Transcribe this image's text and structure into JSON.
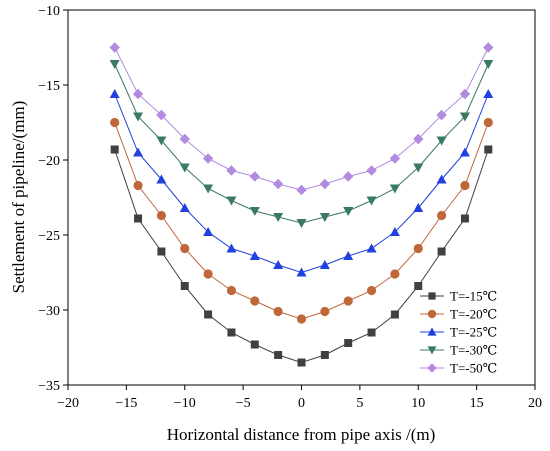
{
  "chart_data": {
    "type": "line",
    "xlabel": "Horizontal distance from pipe axis /(m)",
    "ylabel": "Settlement of pipeline/(mm)",
    "xlim": [
      -20,
      20
    ],
    "ylim": [
      -35,
      -10
    ],
    "xticks": [
      -20,
      -15,
      -10,
      -5,
      0,
      5,
      10,
      15,
      20
    ],
    "yticks": [
      -10,
      -15,
      -20,
      -25,
      -30,
      -35
    ],
    "grid": false,
    "legend_position": "bottom-right",
    "x": [
      -16,
      -14,
      -12,
      -10,
      -8,
      -6,
      -4,
      -2,
      0,
      2,
      4,
      6,
      8,
      10,
      12,
      14,
      16
    ],
    "series": [
      {
        "name": "T=-15℃",
        "marker": "square",
        "color": "#404040",
        "values": [
          -19.3,
          -23.9,
          -26.1,
          -28.4,
          -30.3,
          -31.5,
          -32.3,
          -33.0,
          -33.5,
          -33.0,
          -32.2,
          -31.5,
          -30.3,
          -28.4,
          -26.1,
          -23.9,
          -19.3
        ]
      },
      {
        "name": "T=-20℃",
        "marker": "circle",
        "color": "#c0673a",
        "values": [
          -17.5,
          -21.7,
          -23.7,
          -25.9,
          -27.6,
          -28.7,
          -29.4,
          -30.1,
          -30.6,
          -30.1,
          -29.4,
          -28.7,
          -27.6,
          -25.9,
          -23.7,
          -21.7,
          -17.5
        ]
      },
      {
        "name": "T=-25℃",
        "marker": "triangle-up",
        "color": "#2040e0",
        "values": [
          -15.6,
          -19.5,
          -21.3,
          -23.2,
          -24.8,
          -25.9,
          -26.4,
          -27.0,
          -27.5,
          -27.0,
          -26.4,
          -25.9,
          -24.8,
          -23.2,
          -21.3,
          -19.5,
          -15.6
        ]
      },
      {
        "name": "T=-30℃",
        "marker": "triangle-down",
        "color": "#3a7a60",
        "values": [
          -13.6,
          -17.1,
          -18.7,
          -20.5,
          -21.9,
          -22.7,
          -23.4,
          -23.8,
          -24.2,
          -23.8,
          -23.4,
          -22.7,
          -21.9,
          -20.5,
          -18.7,
          -17.1,
          -13.6
        ]
      },
      {
        "name": "T=-50℃",
        "marker": "diamond",
        "color": "#b28ae0",
        "values": [
          -12.5,
          -15.6,
          -17.0,
          -18.6,
          -19.9,
          -20.7,
          -21.1,
          -21.6,
          -22.0,
          -21.6,
          -21.1,
          -20.7,
          -19.9,
          -18.6,
          -17.0,
          -15.6,
          -12.5
        ]
      }
    ]
  }
}
